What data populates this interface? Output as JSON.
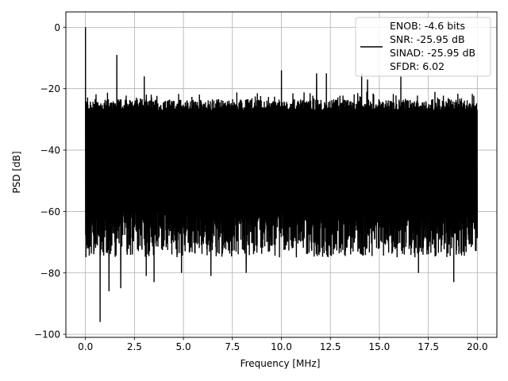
{
  "chart_data": {
    "type": "line",
    "title": "",
    "xlabel": "Frequency [MHz]",
    "ylabel": "PSD [dB]",
    "xlim": [
      -1.0,
      21.0
    ],
    "ylim": [
      -101.0,
      5.0
    ],
    "xticks": [
      0.0,
      2.5,
      5.0,
      7.5,
      10.0,
      12.5,
      15.0,
      17.5,
      20.0
    ],
    "xtick_labels": [
      "0.0",
      "2.5",
      "5.0",
      "7.5",
      "10.0",
      "12.5",
      "15.0",
      "17.5",
      "20.0"
    ],
    "yticks": [
      0,
      -20,
      -40,
      -60,
      -80,
      -100
    ],
    "ytick_labels": [
      "0",
      "−20",
      "−40",
      "−60",
      "−80",
      "−100"
    ],
    "grid": true,
    "legend_position": "top-right",
    "series": [
      {
        "name": "ENOB: -4.6 bits\nSNR: -25.95 dB\nSINAD: -25.95 dB\nSFDR: 6.02",
        "color": "#000000",
        "description_of_shape": "dense noise floor spanning roughly -27 to -75 dB across 0-20 MHz",
        "noise_floor_upper_range": [
          -27,
          -21
        ],
        "noise_floor_lower_range": [
          -75,
          -60
        ],
        "spikes": [
          {
            "x": 0.0,
            "y": 0.0
          },
          {
            "x": 1.6,
            "y": -9
          },
          {
            "x": 3.0,
            "y": -16
          },
          {
            "x": 10.0,
            "y": -14
          },
          {
            "x": 11.8,
            "y": -15
          },
          {
            "x": 12.3,
            "y": -15
          },
          {
            "x": 14.1,
            "y": -15
          },
          {
            "x": 14.4,
            "y": -17
          },
          {
            "x": 16.1,
            "y": -16
          }
        ],
        "dips": [
          {
            "x": 0.75,
            "y": -96
          },
          {
            "x": 1.2,
            "y": -86
          },
          {
            "x": 1.8,
            "y": -85
          },
          {
            "x": 3.1,
            "y": -81
          },
          {
            "x": 3.5,
            "y": -83
          },
          {
            "x": 4.9,
            "y": -80
          },
          {
            "x": 6.4,
            "y": -81
          },
          {
            "x": 8.2,
            "y": -80
          },
          {
            "x": 17.0,
            "y": -80
          },
          {
            "x": 18.8,
            "y": -83
          }
        ]
      }
    ],
    "legend_text": [
      "ENOB: -4.6 bits",
      "SNR: -25.95 dB",
      "SINAD: -25.95 dB",
      "SFDR: 6.02"
    ]
  }
}
